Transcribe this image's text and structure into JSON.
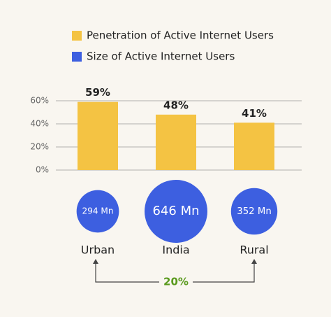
{
  "chart_data": {
    "type": "bar",
    "categories": [
      "Urban",
      "India",
      "Rural"
    ],
    "series": [
      {
        "name": "Penetration of Active Internet Users",
        "type": "bar",
        "color": "#f4c343",
        "values": [
          59,
          48,
          41
        ],
        "value_labels": [
          "59%",
          "48%",
          "41%"
        ]
      },
      {
        "name": "Size of Active Internet Users",
        "type": "bubble",
        "color": "#3d5fe0",
        "values": [
          294,
          646,
          352
        ],
        "value_labels": [
          "294 Mn",
          "646 Mn",
          "352 Mn"
        ]
      }
    ],
    "ylim": [
      0,
      60
    ],
    "yticks": [
      {
        "value": 0,
        "label": "0%"
      },
      {
        "value": 20,
        "label": "20%"
      },
      {
        "value": 40,
        "label": "40%"
      },
      {
        "value": 60,
        "label": "60%"
      }
    ],
    "grid": true,
    "annotation": "20%"
  }
}
